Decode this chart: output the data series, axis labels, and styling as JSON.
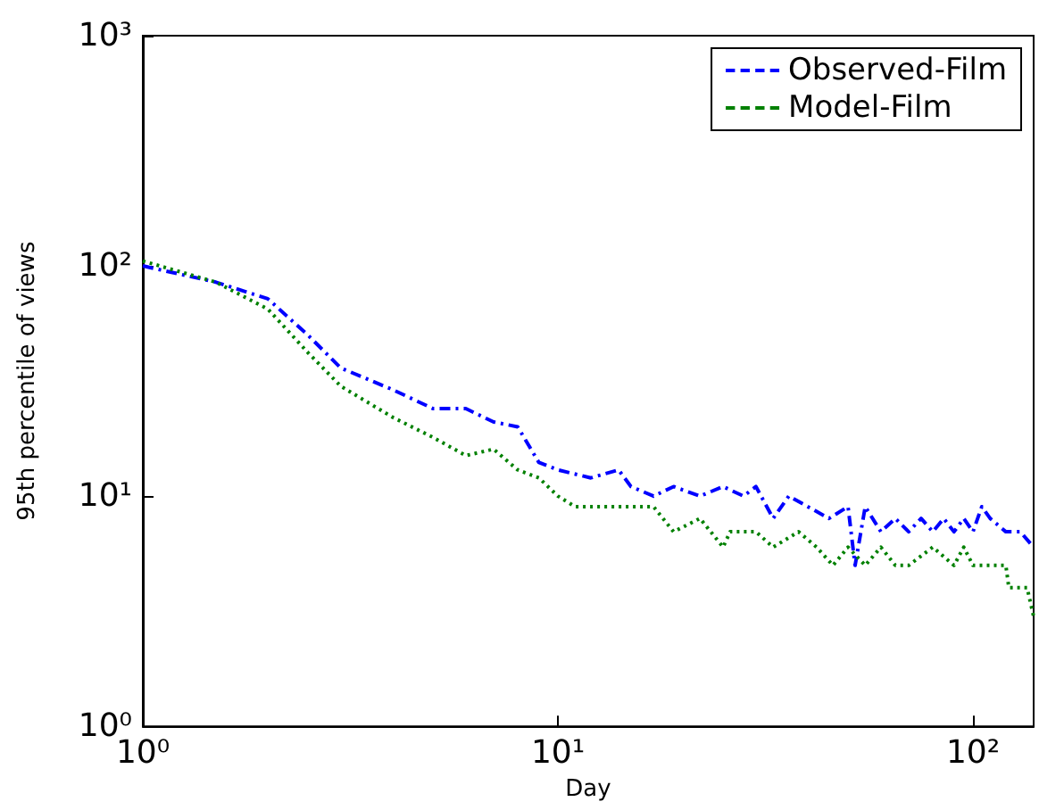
{
  "chart_data": {
    "type": "line",
    "xlabel": "Day",
    "ylabel": "95th percentile of views",
    "log": "xy",
    "grid": false,
    "legend": "top right",
    "marker": "none",
    "xlim": [
      1,
      140
    ],
    "xticks": [
      {
        "value": 1,
        "label": "10⁰"
      },
      {
        "value": 10,
        "label": "10¹"
      },
      {
        "value": 100,
        "label": "10²"
      }
    ],
    "ylim": [
      1,
      1000
    ],
    "yticks": [
      {
        "value": 1,
        "label": "10⁰"
      },
      {
        "value": 10,
        "label": "10¹"
      },
      {
        "value": 100,
        "label": "10²"
      },
      {
        "value": 1000,
        "label": "10³"
      }
    ],
    "series": [
      {
        "name": "Observed-Film",
        "color": "#0000ff",
        "line_style": "dashed",
        "x": [
          1,
          1.3,
          1.5,
          2,
          2.5,
          3,
          4,
          5,
          6,
          7,
          8,
          9,
          10,
          12,
          14,
          15,
          17,
          19,
          22,
          25,
          28,
          30,
          33,
          36,
          40,
          45,
          50,
          52,
          55,
          60,
          65,
          70,
          75,
          80,
          85,
          90,
          95,
          100,
          105,
          110,
          120,
          130,
          140
        ],
        "values": [
          100,
          90,
          85,
          72,
          50,
          36,
          29,
          24,
          24,
          21,
          20,
          14,
          13,
          12,
          13,
          11,
          10,
          11,
          10,
          11,
          10,
          11,
          8,
          10,
          9,
          8,
          9,
          5,
          9,
          7,
          8,
          7,
          8,
          7,
          8,
          7,
          8,
          7,
          9,
          8,
          7,
          7,
          6
        ]
      },
      {
        "name": "Model-Film",
        "color": "#008000",
        "line_style": "dotted",
        "x": [
          1,
          1.5,
          2,
          2.5,
          3,
          4,
          5,
          6,
          7,
          8,
          9,
          10,
          11,
          15,
          17,
          19,
          22,
          25,
          26,
          30,
          33,
          38,
          42,
          46,
          50,
          55,
          60,
          65,
          70,
          80,
          90,
          95,
          100,
          120,
          122,
          130,
          135,
          140
        ],
        "values": [
          105,
          85,
          65,
          42,
          30,
          22,
          18,
          15,
          16,
          13,
          12,
          10,
          9,
          9,
          9,
          7,
          8,
          6,
          7,
          7,
          6,
          7,
          6,
          5,
          6,
          5,
          6,
          5,
          5,
          6,
          5,
          6,
          5,
          5,
          4,
          4,
          4,
          3
        ]
      }
    ]
  }
}
